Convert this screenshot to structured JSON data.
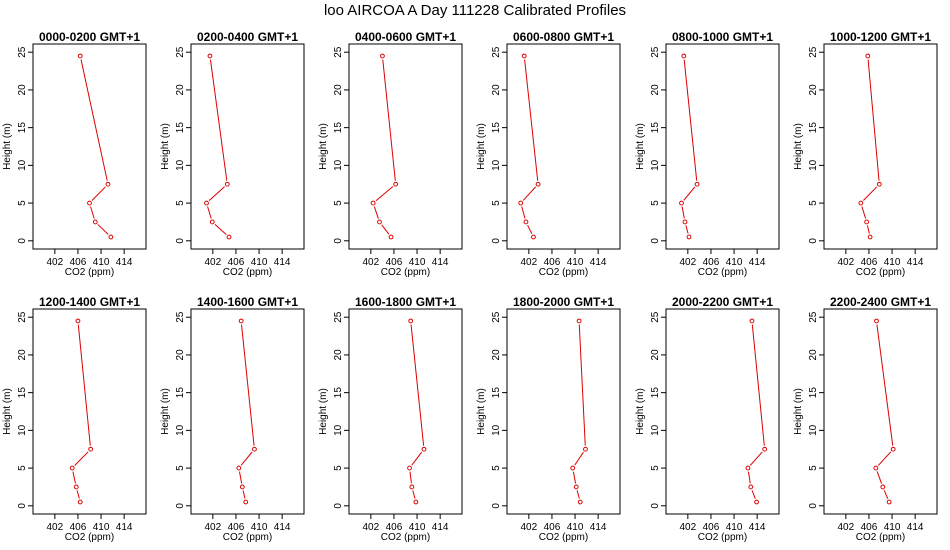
{
  "title": "loo AIRCOA A  Day 111228  Calibrated Profiles",
  "colors": {
    "series": "#dd0000",
    "axis": "#000000"
  },
  "chart_data": [
    {
      "type": "line",
      "title": "0000-0200 GMT+1",
      "xlabel": "CO2 (ppm)",
      "ylabel": "Height (m)",
      "xlim": [
        399,
        417
      ],
      "ylim": [
        0,
        25
      ],
      "xticks": [
        402,
        406,
        410,
        414
      ],
      "yticks": [
        0,
        5,
        10,
        15,
        20,
        25
      ],
      "x": [
        411.7,
        409.0,
        408.0,
        411.2,
        406.4
      ],
      "y": [
        0.5,
        2.5,
        5.0,
        7.5,
        24.5
      ]
    },
    {
      "type": "line",
      "title": "0200-0400 GMT+1",
      "xlabel": "CO2 (ppm)",
      "ylabel": "Height (m)",
      "xlim": [
        399,
        417
      ],
      "ylim": [
        0,
        25
      ],
      "xticks": [
        402,
        406,
        410,
        414
      ],
      "yticks": [
        0,
        5,
        10,
        15,
        20,
        25
      ],
      "x": [
        404.8,
        401.9,
        400.9,
        404.5,
        401.5
      ],
      "y": [
        0.5,
        2.5,
        5.0,
        7.5,
        24.5
      ]
    },
    {
      "type": "line",
      "title": "0400-0600 GMT+1",
      "xlabel": "CO2 (ppm)",
      "ylabel": "Height (m)",
      "xlim": [
        399,
        417
      ],
      "ylim": [
        0,
        25
      ],
      "xticks": [
        402,
        406,
        410,
        414
      ],
      "yticks": [
        0,
        5,
        10,
        15,
        20,
        25
      ],
      "x": [
        405.5,
        403.5,
        402.4,
        406.3,
        404.0
      ],
      "y": [
        0.5,
        2.5,
        5.0,
        7.5,
        24.5
      ]
    },
    {
      "type": "line",
      "title": "0600-0800 GMT+1",
      "xlabel": "CO2 (ppm)",
      "ylabel": "Height (m)",
      "xlim": [
        399,
        417
      ],
      "ylim": [
        0,
        25
      ],
      "xticks": [
        402,
        406,
        410,
        414
      ],
      "yticks": [
        0,
        5,
        10,
        15,
        20,
        25
      ],
      "x": [
        402.8,
        401.5,
        400.6,
        403.6,
        401.2
      ],
      "y": [
        0.5,
        2.5,
        5.0,
        7.5,
        24.5
      ]
    },
    {
      "type": "line",
      "title": "0800-1000 GMT+1",
      "xlabel": "CO2 (ppm)",
      "ylabel": "Height (m)",
      "xlim": [
        399,
        417
      ],
      "ylim": [
        0,
        25
      ],
      "xticks": [
        402,
        406,
        410,
        414
      ],
      "yticks": [
        0,
        5,
        10,
        15,
        20,
        25
      ],
      "x": [
        402.2,
        401.5,
        400.9,
        403.6,
        401.3
      ],
      "y": [
        0.5,
        2.5,
        5.0,
        7.5,
        24.5
      ]
    },
    {
      "type": "line",
      "title": "1000-1200 GMT+1",
      "xlabel": "CO2 (ppm)",
      "ylabel": "Height (m)",
      "xlim": [
        399,
        417
      ],
      "ylim": [
        0,
        25
      ],
      "xticks": [
        402,
        406,
        410,
        414
      ],
      "yticks": [
        0,
        5,
        10,
        15,
        20,
        25
      ],
      "x": [
        406.2,
        405.6,
        404.6,
        407.8,
        405.8
      ],
      "y": [
        0.5,
        2.5,
        5.0,
        7.5,
        24.5
      ]
    },
    {
      "type": "line",
      "title": "1200-1400 GMT+1",
      "xlabel": "CO2 (ppm)",
      "ylabel": "Height (m)",
      "xlim": [
        399,
        417
      ],
      "ylim": [
        0,
        25
      ],
      "xticks": [
        402,
        406,
        410,
        414
      ],
      "yticks": [
        0,
        5,
        10,
        15,
        20,
        25
      ],
      "x": [
        406.4,
        405.7,
        405.0,
        408.2,
        406.0
      ],
      "y": [
        0.5,
        2.5,
        5.0,
        7.5,
        24.5
      ]
    },
    {
      "type": "line",
      "title": "1400-1600 GMT+1",
      "xlabel": "CO2 (ppm)",
      "ylabel": "Height (m)",
      "xlim": [
        399,
        417
      ],
      "ylim": [
        0,
        25
      ],
      "xticks": [
        402,
        406,
        410,
        414
      ],
      "yticks": [
        0,
        5,
        10,
        15,
        20,
        25
      ],
      "x": [
        407.7,
        407.1,
        406.5,
        409.2,
        406.9
      ],
      "y": [
        0.5,
        2.5,
        5.0,
        7.5,
        24.5
      ]
    },
    {
      "type": "line",
      "title": "1600-1800 GMT+1",
      "xlabel": "CO2 (ppm)",
      "ylabel": "Height (m)",
      "xlim": [
        399,
        417
      ],
      "ylim": [
        0,
        25
      ],
      "xticks": [
        402,
        406,
        410,
        414
      ],
      "yticks": [
        0,
        5,
        10,
        15,
        20,
        25
      ],
      "x": [
        409.8,
        409.1,
        408.7,
        411.2,
        408.9
      ],
      "y": [
        0.5,
        2.5,
        5.0,
        7.5,
        24.5
      ]
    },
    {
      "type": "line",
      "title": "1800-2000 GMT+1",
      "xlabel": "CO2 (ppm)",
      "ylabel": "Height (m)",
      "xlim": [
        399,
        417
      ],
      "ylim": [
        0,
        25
      ],
      "xticks": [
        402,
        406,
        410,
        414
      ],
      "yticks": [
        0,
        5,
        10,
        15,
        20,
        25
      ],
      "x": [
        410.9,
        410.2,
        409.6,
        411.8,
        410.7
      ],
      "y": [
        0.5,
        2.5,
        5.0,
        7.5,
        24.5
      ]
    },
    {
      "type": "line",
      "title": "2000-2200 GMT+1",
      "xlabel": "CO2 (ppm)",
      "ylabel": "Height (m)",
      "xlim": [
        399,
        417
      ],
      "ylim": [
        0,
        25
      ],
      "xticks": [
        402,
        406,
        410,
        414
      ],
      "yticks": [
        0,
        5,
        10,
        15,
        20,
        25
      ],
      "x": [
        413.9,
        412.9,
        412.4,
        415.3,
        413.1
      ],
      "y": [
        0.5,
        2.5,
        5.0,
        7.5,
        24.5
      ]
    },
    {
      "type": "line",
      "title": "2200-2400 GMT+1",
      "xlabel": "CO2 (ppm)",
      "ylabel": "Height (m)",
      "xlim": [
        399,
        417
      ],
      "ylim": [
        0,
        25
      ],
      "xticks": [
        402,
        406,
        410,
        414
      ],
      "yticks": [
        0,
        5,
        10,
        15,
        20,
        25
      ],
      "x": [
        409.5,
        408.4,
        407.2,
        410.2,
        407.3
      ],
      "y": [
        0.5,
        2.5,
        5.0,
        7.5,
        24.5
      ]
    }
  ]
}
